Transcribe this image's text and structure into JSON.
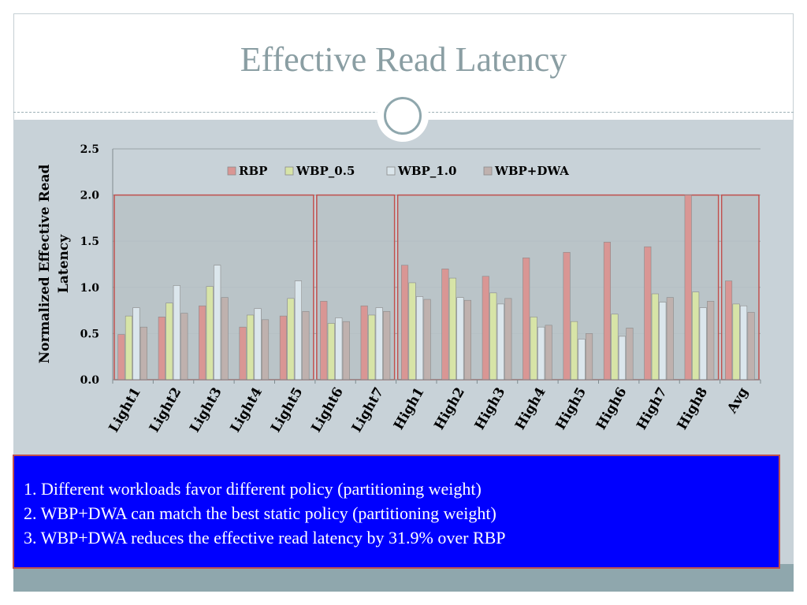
{
  "slide": {
    "title": "Effective Read Latency"
  },
  "notes": [
    "1. Different workloads favor different policy (partitioning weight)",
    "2. WBP+DWA can match the best static policy (partitioning weight)",
    "3. WBP+DWA reduces the effective read latency by 31.9% over RBP"
  ],
  "colors": {
    "RBP": "#d99694",
    "WBP_0.5": "#d7e4a7",
    "WBP_1.0": "#dbe6ec",
    "WBP+DWA": "#bfb1ae",
    "highlight": "#c0504d",
    "notebox": "#0000ff"
  },
  "chart_data": {
    "type": "bar",
    "ylabel": "Normalized Effective Read Latency",
    "ylim": [
      0,
      2.5
    ],
    "yticks": [
      "0.0",
      "0.5",
      "1.0",
      "1.5",
      "2.0",
      "2.5"
    ],
    "legend_position": "top-center",
    "grid": true,
    "categories": [
      "Light1",
      "Light2",
      "Light3",
      "Light4",
      "Light5",
      "Light6",
      "Light7",
      "High1",
      "High2",
      "High3",
      "High4",
      "High5",
      "High6",
      "High7",
      "High8",
      "Avg"
    ],
    "series": [
      {
        "name": "RBP",
        "values": [
          0.49,
          0.68,
          0.8,
          0.57,
          0.69,
          0.85,
          0.8,
          1.24,
          1.2,
          1.12,
          1.32,
          1.38,
          1.49,
          1.44,
          2.0,
          1.07
        ]
      },
      {
        "name": "WBP_0.5",
        "values": [
          0.69,
          0.83,
          1.01,
          0.7,
          0.88,
          0.61,
          0.7,
          1.05,
          1.1,
          0.94,
          0.68,
          0.63,
          0.71,
          0.93,
          0.95,
          0.82
        ]
      },
      {
        "name": "WBP_1.0",
        "values": [
          0.78,
          1.02,
          1.24,
          0.77,
          1.07,
          0.67,
          0.78,
          0.9,
          0.89,
          0.82,
          0.57,
          0.44,
          0.47,
          0.84,
          0.78,
          0.8
        ]
      },
      {
        "name": "WBP+DWA",
        "values": [
          0.57,
          0.72,
          0.89,
          0.65,
          0.74,
          0.63,
          0.74,
          0.87,
          0.86,
          0.88,
          0.59,
          0.5,
          0.56,
          0.89,
          0.85,
          0.73
        ]
      }
    ],
    "highlight_groups": [
      {
        "from": "Light1",
        "to": "Light5"
      },
      {
        "from": "Light6",
        "to": "Light7"
      },
      {
        "from": "High1",
        "to": "High8"
      },
      {
        "from": "Avg",
        "to": "Avg"
      }
    ],
    "highlight_level": 2.0
  }
}
